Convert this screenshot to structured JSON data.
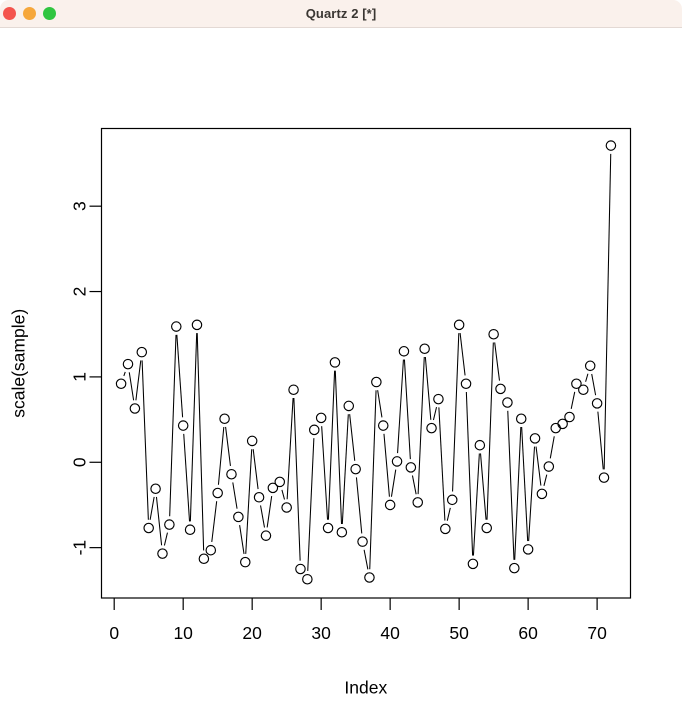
{
  "window": {
    "title": "Quartz 2 [*]",
    "titlebar_bg": "#faf1ec",
    "buttons": [
      {
        "name": "close",
        "color": "#f4544d"
      },
      {
        "name": "minimize",
        "color": "#f6a73b"
      },
      {
        "name": "zoom",
        "color": "#30c540"
      }
    ]
  },
  "chart_data": {
    "type": "scatter",
    "subtype": "R type='b' points connected by gapped line segments, open circle markers",
    "title": "",
    "xlabel": "Index",
    "ylabel": "scale(sample)",
    "x_start": 1,
    "values": [
      0.92,
      1.15,
      0.63,
      1.29,
      -0.77,
      -0.31,
      -1.07,
      -0.73,
      1.59,
      0.43,
      -0.79,
      1.61,
      -1.13,
      -1.03,
      -0.36,
      0.51,
      -0.14,
      -0.64,
      -1.17,
      0.25,
      -0.41,
      -0.86,
      -0.3,
      -0.23,
      -0.53,
      0.85,
      -1.25,
      -1.37,
      0.38,
      0.52,
      -0.77,
      1.17,
      -0.82,
      0.66,
      -0.08,
      -0.93,
      -1.35,
      0.94,
      0.43,
      -0.5,
      0.01,
      1.3,
      -0.06,
      -0.47,
      1.33,
      0.4,
      0.74,
      -0.78,
      -0.44,
      1.61,
      0.92,
      -1.19,
      0.2,
      -0.77,
      1.5,
      0.86,
      0.7,
      -1.24,
      0.51,
      -1.02,
      0.28,
      -0.37,
      -0.05,
      0.4,
      0.45,
      0.53,
      0.92,
      0.85,
      1.13,
      0.69,
      -0.18,
      3.71
    ],
    "n_points": 72,
    "xlim": [
      -1.84,
      74.84
    ],
    "ylim": [
      -1.59,
      3.91
    ],
    "xticks": [
      0,
      10,
      20,
      30,
      40,
      50,
      60,
      70
    ],
    "yticks": [
      -1,
      0,
      1,
      2,
      3
    ],
    "grid": false,
    "legend": "none",
    "colors": {
      "stroke": "#000000",
      "background": "#ffffff"
    }
  }
}
